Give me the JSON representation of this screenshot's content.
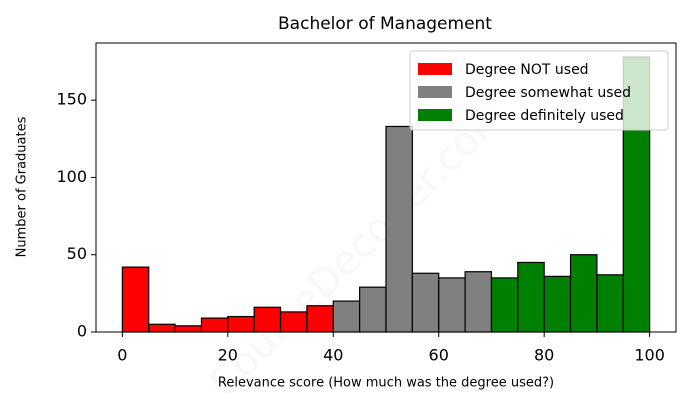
{
  "chart_data": {
    "type": "histogram",
    "title": "Bachelor of Management",
    "xlabel": "Relevance score (How much was the degree used?)",
    "ylabel": "Number of Graduates",
    "watermark": "CourseDecoder.com",
    "series": [
      {
        "name": "Degree NOT used",
        "color": "#ff0000",
        "bins": [
          0,
          5,
          10,
          15,
          20,
          25,
          30,
          35,
          40
        ],
        "values": [
          42,
          5,
          4,
          9,
          10,
          16,
          13,
          17
        ]
      },
      {
        "name": "Degree somewhat used",
        "color": "#808080",
        "bins": [
          40,
          45,
          50,
          55,
          60,
          65,
          70
        ],
        "values": [
          20,
          29,
          133,
          38,
          35,
          39
        ]
      },
      {
        "name": "Degree definitely used",
        "color": "#008000",
        "bins": [
          70,
          75,
          80,
          85,
          90,
          95,
          100
        ],
        "values": [
          35,
          45,
          36,
          50,
          37,
          178
        ]
      }
    ],
    "xlim": [
      -5,
      105
    ],
    "ylim": [
      0,
      187
    ],
    "xticks": [
      0,
      20,
      40,
      60,
      80,
      100
    ],
    "yticks": [
      0,
      50,
      100,
      150
    ],
    "grid": false,
    "legend": "upper right"
  }
}
